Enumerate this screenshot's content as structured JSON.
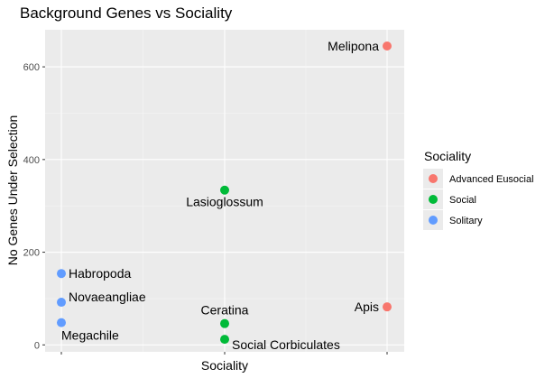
{
  "chart_data": {
    "type": "scatter",
    "title": "Background Genes vs Sociality",
    "xlabel": "Sociality",
    "ylabel": "No Genes Under Selection",
    "x_categories": [
      "Solitary",
      "Social",
      "Advanced Eusocial"
    ],
    "ylim": [
      -15,
      680
    ],
    "y_ticks": [
      0,
      200,
      400,
      600
    ],
    "grid": true,
    "legend": {
      "title": "Sociality",
      "position": "right",
      "entries": [
        {
          "label": "Advanced Eusocial",
          "color": "#F8766D"
        },
        {
          "label": "Social",
          "color": "#00BA38"
        },
        {
          "label": "Solitary",
          "color": "#619CFF"
        }
      ]
    },
    "points": [
      {
        "label": "Melipona",
        "x": "Advanced Eusocial",
        "y": 645
      },
      {
        "label": "Apis",
        "x": "Advanced Eusocial",
        "y": 82
      },
      {
        "label": "Lasioglossum",
        "x": "Social",
        "y": 334
      },
      {
        "label": "Ceratina",
        "x": "Social",
        "y": 46
      },
      {
        "label": "Social Corbiculates",
        "x": "Social",
        "y": 12
      },
      {
        "label": "Habropoda",
        "x": "Solitary",
        "y": 154
      },
      {
        "label": "Novaeangliae",
        "x": "Solitary",
        "y": 92
      },
      {
        "label": "Megachile",
        "x": "Solitary",
        "y": 48
      }
    ]
  }
}
